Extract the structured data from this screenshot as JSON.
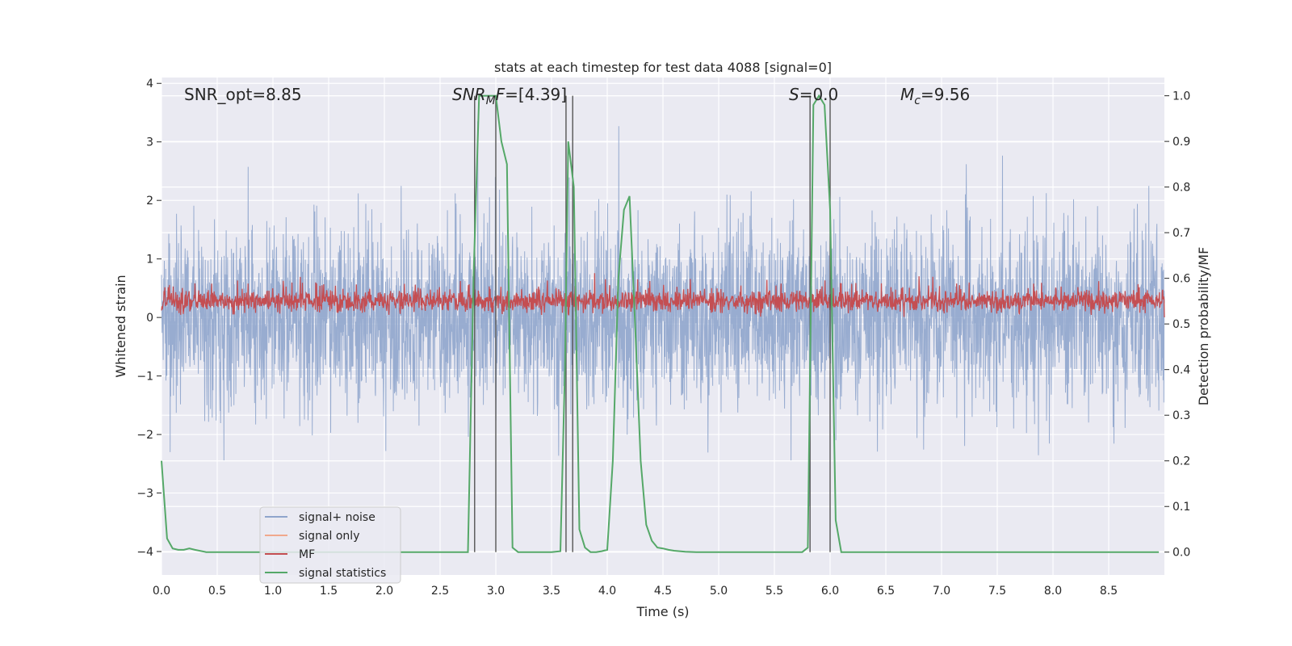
{
  "chart_data": {
    "type": "line",
    "title": "stats at each timestep for test data 4088 [signal=0]",
    "xlabel": "Time (s)",
    "ylabel_left": "Whitened strain",
    "ylabel_right": "Detection probability/MF",
    "xlim": [
      0.0,
      9.0
    ],
    "ylim_left": [
      -4.4,
      4.1
    ],
    "ylim_right": [
      -0.05,
      1.04
    ],
    "xticks": [
      "0.0",
      "0.5",
      "1.0",
      "1.5",
      "2.0",
      "2.5",
      "3.0",
      "3.5",
      "4.0",
      "4.5",
      "5.0",
      "5.5",
      "6.0",
      "6.5",
      "7.0",
      "7.5",
      "8.0",
      "8.5"
    ],
    "yticks_left": [
      "4",
      "3",
      "2",
      "1",
      "0",
      "−1",
      "−2",
      "−3",
      "−4"
    ],
    "yticks_right": [
      "1.0",
      "0.9",
      "0.8",
      "0.7",
      "0.6",
      "0.5",
      "0.4",
      "0.3",
      "0.2",
      "0.1",
      "0.0"
    ],
    "annotations": {
      "snr_opt": "SNR_opt=8.85",
      "snr_mf": "SNR_MF=[4.39]",
      "s": "S=0.0",
      "mc": "M_c=9.56"
    },
    "legend": [
      "signal+ noise",
      "signal only",
      "MF",
      "signal statistics"
    ],
    "colors": {
      "noise": "#8fa5cc",
      "signal_only": "#f0a88c",
      "mf": "#c44e52",
      "stats": "#55a868",
      "vlines": "#555555",
      "plot_bg": "#eaeaf2",
      "grid": "#ffffff"
    },
    "vertical_lines_x": [
      2.81,
      3.0,
      3.63,
      3.69,
      5.82,
      6.0
    ],
    "series": [
      {
        "name": "signal statistics",
        "x": [
          0.0,
          0.05,
          0.1,
          0.15,
          0.2,
          0.25,
          0.3,
          0.4,
          0.5,
          1.0,
          2.0,
          2.5,
          2.75,
          2.8,
          2.85,
          2.9,
          3.0,
          3.05,
          3.1,
          3.15,
          3.2,
          3.3,
          3.5,
          3.58,
          3.62,
          3.65,
          3.7,
          3.75,
          3.8,
          3.85,
          3.9,
          3.95,
          4.0,
          4.05,
          4.1,
          4.15,
          4.2,
          4.25,
          4.3,
          4.35,
          4.4,
          4.45,
          4.5,
          4.55,
          4.6,
          4.7,
          4.8,
          4.9,
          5.0,
          5.5,
          5.75,
          5.8,
          5.85,
          5.9,
          5.95,
          6.0,
          6.05,
          6.1,
          6.2,
          7.0,
          8.0,
          8.95
        ],
        "y": [
          0.2,
          0.03,
          0.008,
          0.005,
          0.005,
          0.008,
          0.005,
          0.0,
          0.0,
          0.0,
          0.0,
          0.0,
          0.0,
          0.6,
          1.0,
          1.0,
          1.0,
          0.9,
          0.85,
          0.01,
          0.0,
          0.0,
          0.0,
          0.002,
          0.4,
          0.9,
          0.8,
          0.05,
          0.01,
          0.0,
          0.0,
          0.002,
          0.005,
          0.2,
          0.6,
          0.75,
          0.78,
          0.5,
          0.2,
          0.06,
          0.025,
          0.01,
          0.008,
          0.005,
          0.003,
          0.001,
          0.0,
          0.0,
          0.0,
          0.0,
          0.0,
          0.01,
          0.98,
          1.0,
          0.98,
          0.75,
          0.07,
          0.0,
          0.0,
          0.0,
          0.0,
          0.0
        ]
      }
    ]
  }
}
